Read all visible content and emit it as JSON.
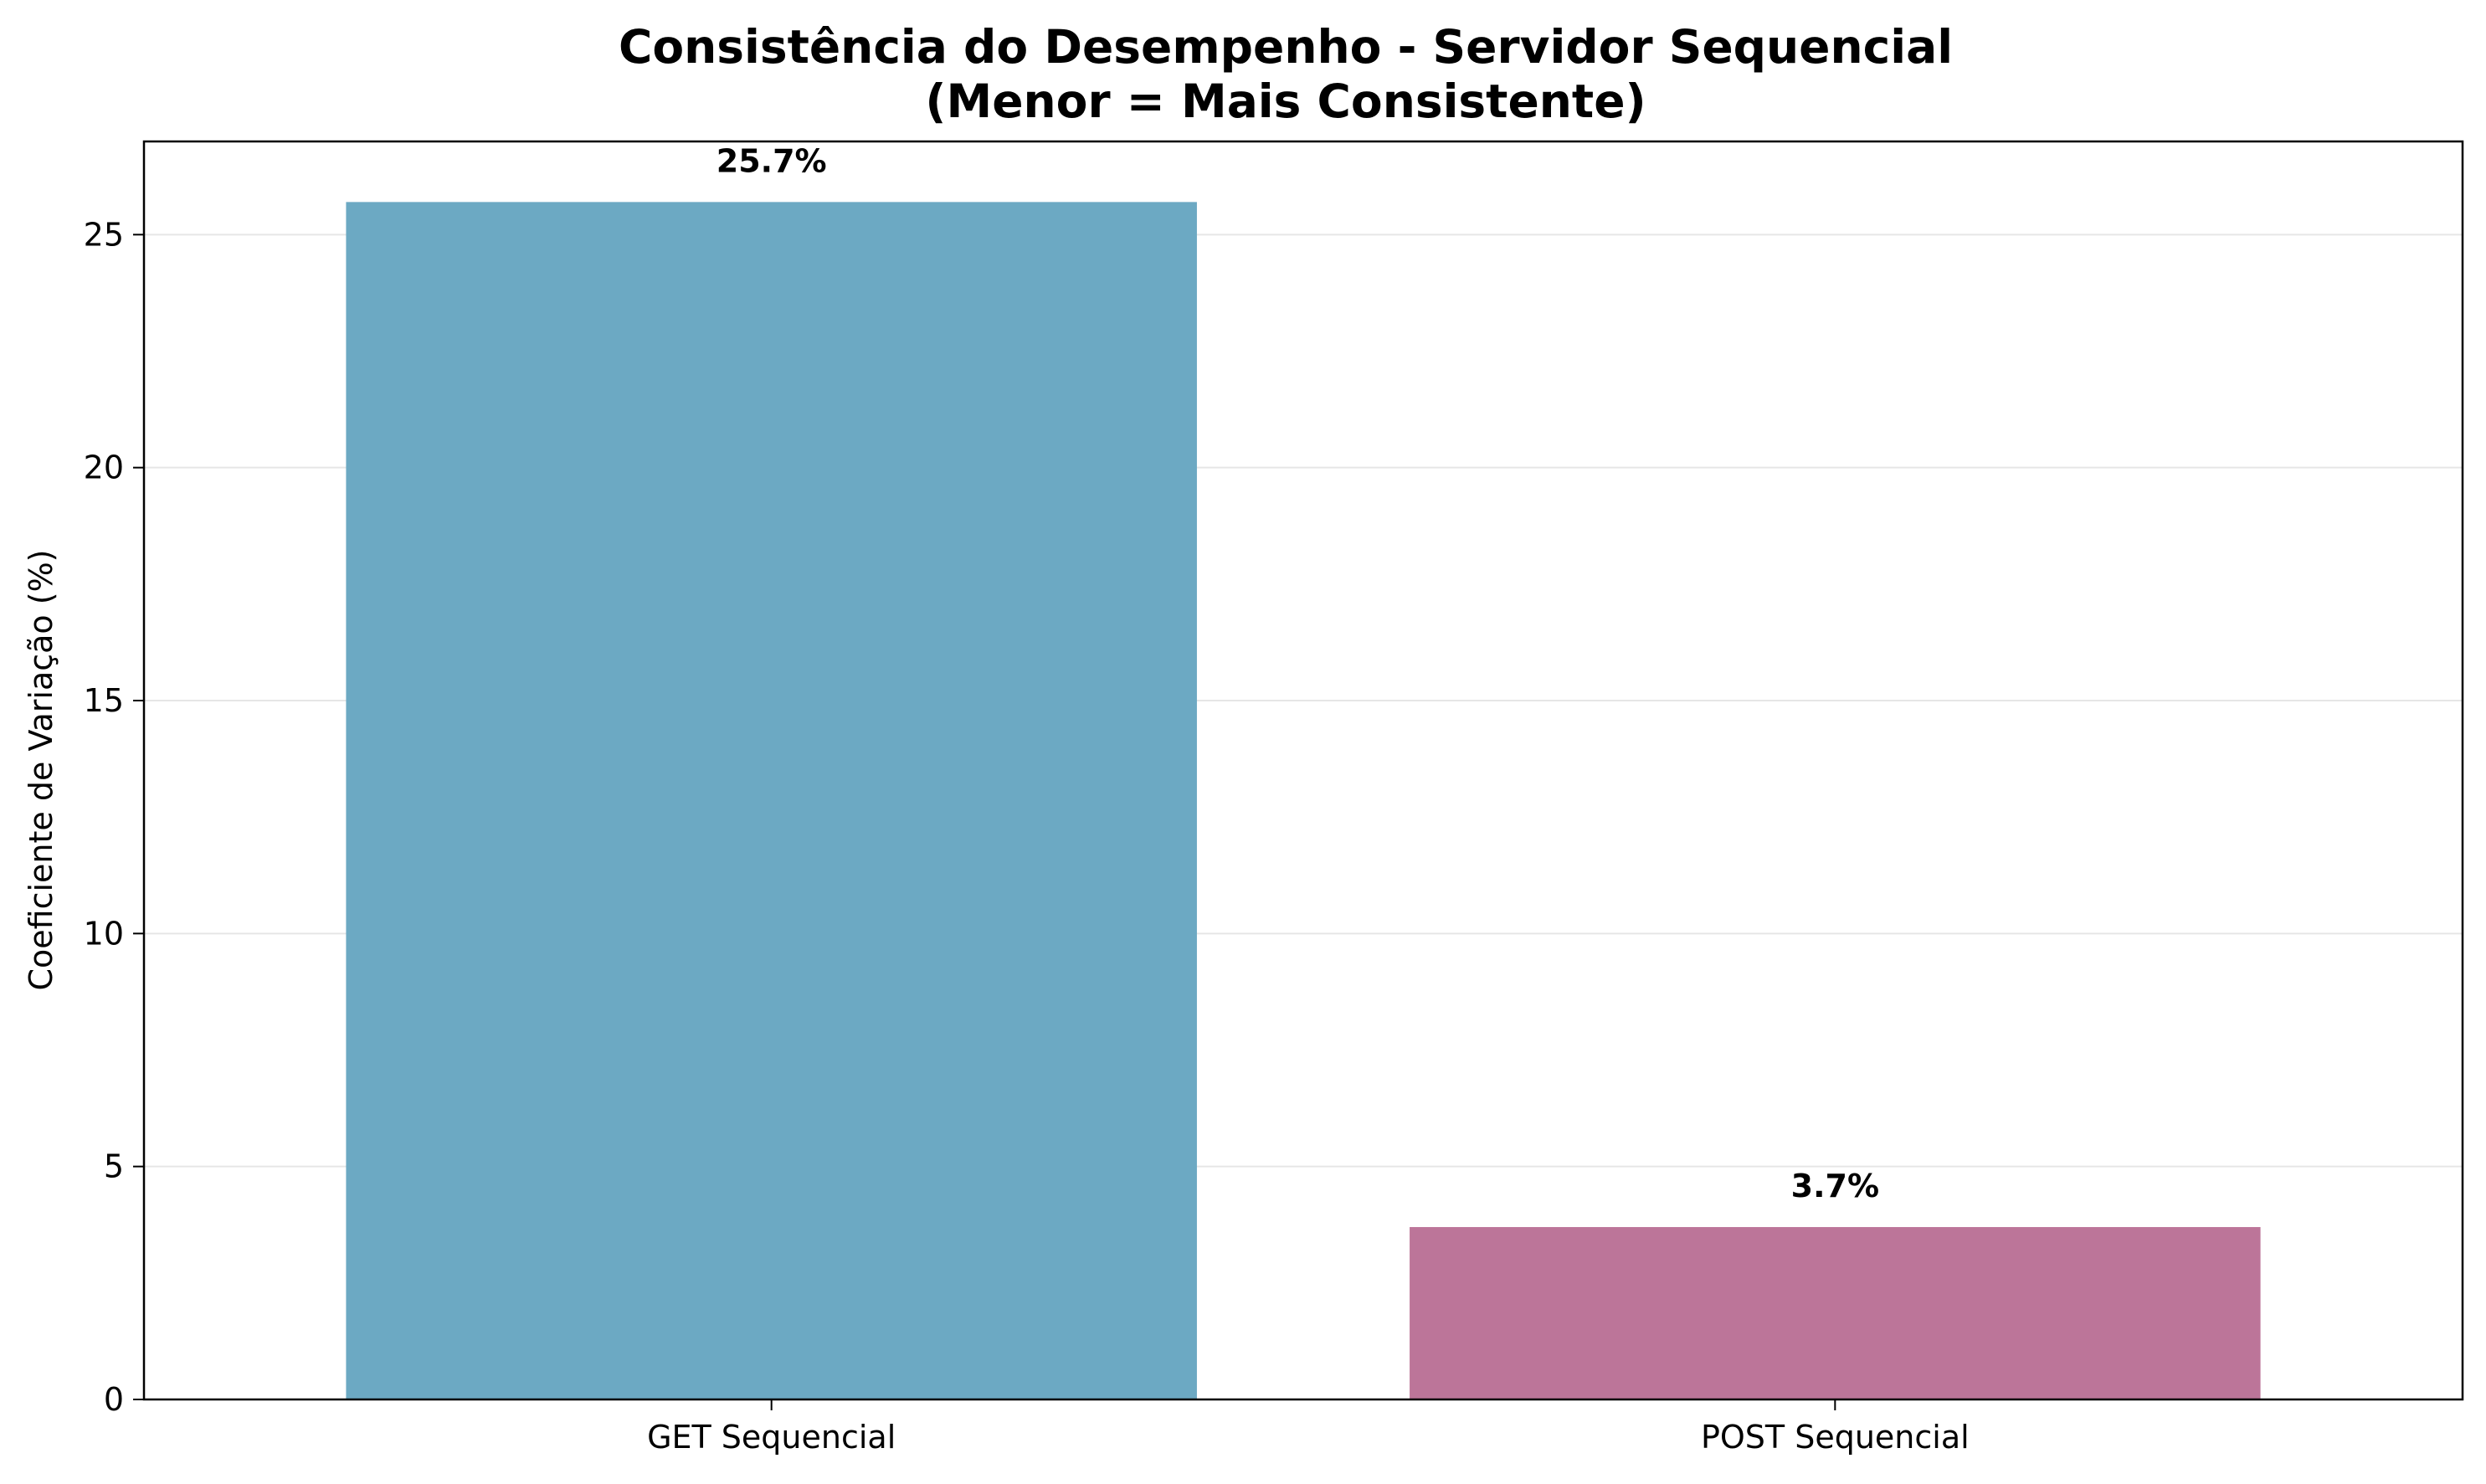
{
  "chart_data": {
    "type": "bar",
    "title": "Consistência do Desempenho - Servidor Sequencial",
    "subtitle": "(Menor = Mais Consistente)",
    "xlabel": "",
    "ylabel": "Coeficiente de Variação (%)",
    "categories": [
      "GET Sequencial",
      "POST Sequencial"
    ],
    "values": [
      25.7,
      3.7
    ],
    "data_labels": [
      "25.7%",
      "3.7%"
    ],
    "colors": [
      "#6ca9c3",
      "#bc7599"
    ],
    "ylim": [
      0,
      27
    ],
    "yticks": [
      0,
      5,
      10,
      15,
      20,
      25
    ],
    "grid": "y",
    "legend": "none"
  }
}
